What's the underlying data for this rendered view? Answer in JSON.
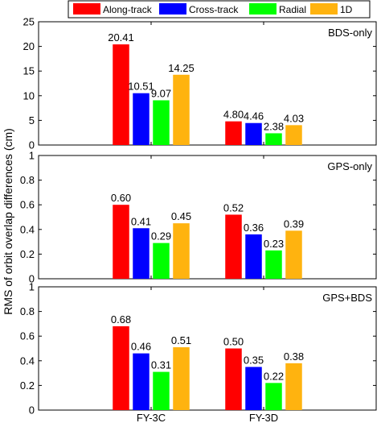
{
  "chart_data": {
    "type": "bar",
    "ylabel": "RMS of orbit overlap differences (cm)",
    "legend": {
      "placement": "top",
      "entries": [
        {
          "name": "Along-track",
          "color": "#ff0000"
        },
        {
          "name": "Cross-track",
          "color": "#0000ff"
        },
        {
          "name": "Radial",
          "color": "#00ff00"
        },
        {
          "name": "1D",
          "color": "#ffb30f"
        }
      ]
    },
    "categories": [
      "FY-3C",
      "FY-3D"
    ],
    "panels": [
      {
        "tag": "BDS-only",
        "ylim": [
          0,
          25
        ],
        "yticks": [
          "0",
          "5",
          "10",
          "15",
          "20",
          "25"
        ],
        "ytick_values": [
          0,
          5,
          10,
          15,
          20,
          25
        ],
        "series": [
          {
            "name": "Along-track",
            "values": [
              20.41,
              4.8
            ],
            "labels": [
              "20.41",
              "4.80"
            ]
          },
          {
            "name": "Cross-track",
            "values": [
              10.51,
              4.46
            ],
            "labels": [
              "10.51",
              "4.46"
            ]
          },
          {
            "name": "Radial",
            "values": [
              9.07,
              2.38
            ],
            "labels": [
              "9.07",
              "2.38"
            ]
          },
          {
            "name": "1D",
            "values": [
              14.25,
              4.03
            ],
            "labels": [
              "14.25",
              "4.03"
            ]
          }
        ]
      },
      {
        "tag": "GPS-only",
        "ylim": [
          0,
          1
        ],
        "yticks": [
          "0",
          "0.2",
          "0.4",
          "0.6",
          "0.8",
          "1"
        ],
        "ytick_values": [
          0,
          0.2,
          0.4,
          0.6,
          0.8,
          1
        ],
        "series": [
          {
            "name": "Along-track",
            "values": [
              0.6,
              0.52
            ],
            "labels": [
              "0.60",
              "0.52"
            ]
          },
          {
            "name": "Cross-track",
            "values": [
              0.41,
              0.36
            ],
            "labels": [
              "0.41",
              "0.36"
            ]
          },
          {
            "name": "Radial",
            "values": [
              0.29,
              0.23
            ],
            "labels": [
              "0.29",
              "0.23"
            ]
          },
          {
            "name": "1D",
            "values": [
              0.45,
              0.39
            ],
            "labels": [
              "0.45",
              "0.39"
            ]
          }
        ]
      },
      {
        "tag": "GPS+BDS",
        "ylim": [
          0,
          1
        ],
        "yticks": [
          "0",
          "0.2",
          "0.4",
          "0.6",
          "0.8",
          "1"
        ],
        "ytick_values": [
          0,
          0.2,
          0.4,
          0.6,
          0.8,
          1
        ],
        "series": [
          {
            "name": "Along-track",
            "values": [
              0.68,
              0.5
            ],
            "labels": [
              "0.68",
              "0.50"
            ]
          },
          {
            "name": "Cross-track",
            "values": [
              0.46,
              0.35
            ],
            "labels": [
              "0.46",
              "0.35"
            ]
          },
          {
            "name": "Radial",
            "values": [
              0.31,
              0.22
            ],
            "labels": [
              "0.31",
              "0.22"
            ]
          },
          {
            "name": "1D",
            "values": [
              0.51,
              0.38
            ],
            "labels": [
              "0.51",
              "0.38"
            ]
          }
        ]
      }
    ],
    "grid": false
  }
}
